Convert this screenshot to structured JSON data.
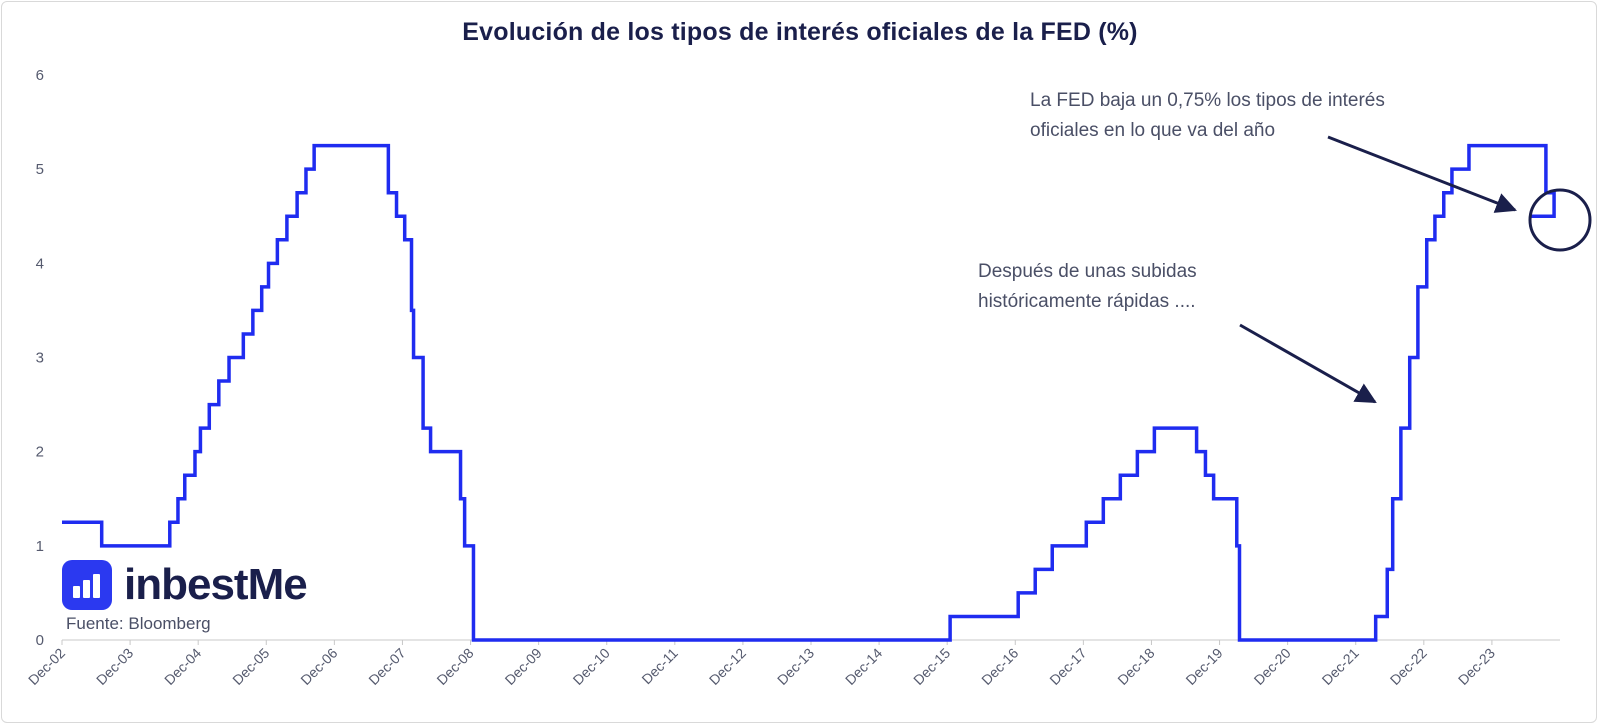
{
  "chart_data": {
    "type": "line",
    "title": "Evolución de los tipos de interés oficiales de la FED (%)",
    "xlabel": "",
    "ylabel": "",
    "ylim": [
      0,
      6
    ],
    "yticks": [
      0,
      1,
      2,
      3,
      4,
      5,
      6
    ],
    "xticks": [
      "Dec-02",
      "Dec-03",
      "Dec-04",
      "Dec-05",
      "Dec-06",
      "Dec-07",
      "Dec-08",
      "Dec-09",
      "Dec-10",
      "Dec-11",
      "Dec-12",
      "Dec-13",
      "Dec-14",
      "Dec-15",
      "Dec-16",
      "Dec-17",
      "Dec-18",
      "Dec-19",
      "Dec-20",
      "Dec-21",
      "Dec-22",
      "Dec-23"
    ],
    "xrange": [
      2002.917,
      2024.917
    ],
    "step": true,
    "series": [
      {
        "color": "#1f2cf0",
        "points": [
          [
            2002.917,
            1.25
          ],
          [
            2003.5,
            1.0
          ],
          [
            2004.5,
            1.25
          ],
          [
            2004.62,
            1.5
          ],
          [
            2004.72,
            1.75
          ],
          [
            2004.87,
            2.0
          ],
          [
            2004.95,
            2.25
          ],
          [
            2005.08,
            2.5
          ],
          [
            2005.22,
            2.75
          ],
          [
            2005.37,
            3.0
          ],
          [
            2005.58,
            3.25
          ],
          [
            2005.72,
            3.5
          ],
          [
            2005.85,
            3.75
          ],
          [
            2005.95,
            4.0
          ],
          [
            2006.08,
            4.25
          ],
          [
            2006.22,
            4.5
          ],
          [
            2006.37,
            4.75
          ],
          [
            2006.5,
            5.0
          ],
          [
            2006.62,
            5.25
          ],
          [
            2007.71,
            4.75
          ],
          [
            2007.83,
            4.5
          ],
          [
            2007.95,
            4.25
          ],
          [
            2008.05,
            3.5
          ],
          [
            2008.08,
            3.0
          ],
          [
            2008.22,
            2.25
          ],
          [
            2008.33,
            2.0
          ],
          [
            2008.77,
            1.5
          ],
          [
            2008.83,
            1.0
          ],
          [
            2008.96,
            0.0
          ],
          [
            2015.96,
            0.25
          ],
          [
            2016.96,
            0.5
          ],
          [
            2017.21,
            0.75
          ],
          [
            2017.46,
            1.0
          ],
          [
            2017.96,
            1.25
          ],
          [
            2018.21,
            1.5
          ],
          [
            2018.46,
            1.75
          ],
          [
            2018.71,
            2.0
          ],
          [
            2018.96,
            2.25
          ],
          [
            2019.58,
            2.0
          ],
          [
            2019.71,
            1.75
          ],
          [
            2019.83,
            1.5
          ],
          [
            2020.17,
            1.0
          ],
          [
            2020.21,
            0.0
          ],
          [
            2022.21,
            0.25
          ],
          [
            2022.38,
            0.75
          ],
          [
            2022.46,
            1.5
          ],
          [
            2022.58,
            2.25
          ],
          [
            2022.71,
            3.0
          ],
          [
            2022.83,
            3.75
          ],
          [
            2022.96,
            4.25
          ],
          [
            2023.08,
            4.5
          ],
          [
            2023.21,
            4.75
          ],
          [
            2023.33,
            5.0
          ],
          [
            2023.58,
            5.25
          ],
          [
            2024.71,
            4.75
          ],
          [
            2024.83,
            4.5
          ]
        ]
      }
    ],
    "annotations": [
      {
        "lines": [
          "La FED baja un 0,75% los tipos de interés",
          "oficiales en lo que va del año"
        ],
        "color": "#1a1f4b"
      },
      {
        "lines": [
          "Después de unas subidas",
          "históricamente rápidas ...."
        ],
        "color": "#1a1f4b"
      }
    ],
    "highlight_circle_color": "#1a1f4b"
  },
  "brand": {
    "name": "inbestMe",
    "accent": "#2b39f0"
  },
  "source": "Fuente: Bloomberg"
}
